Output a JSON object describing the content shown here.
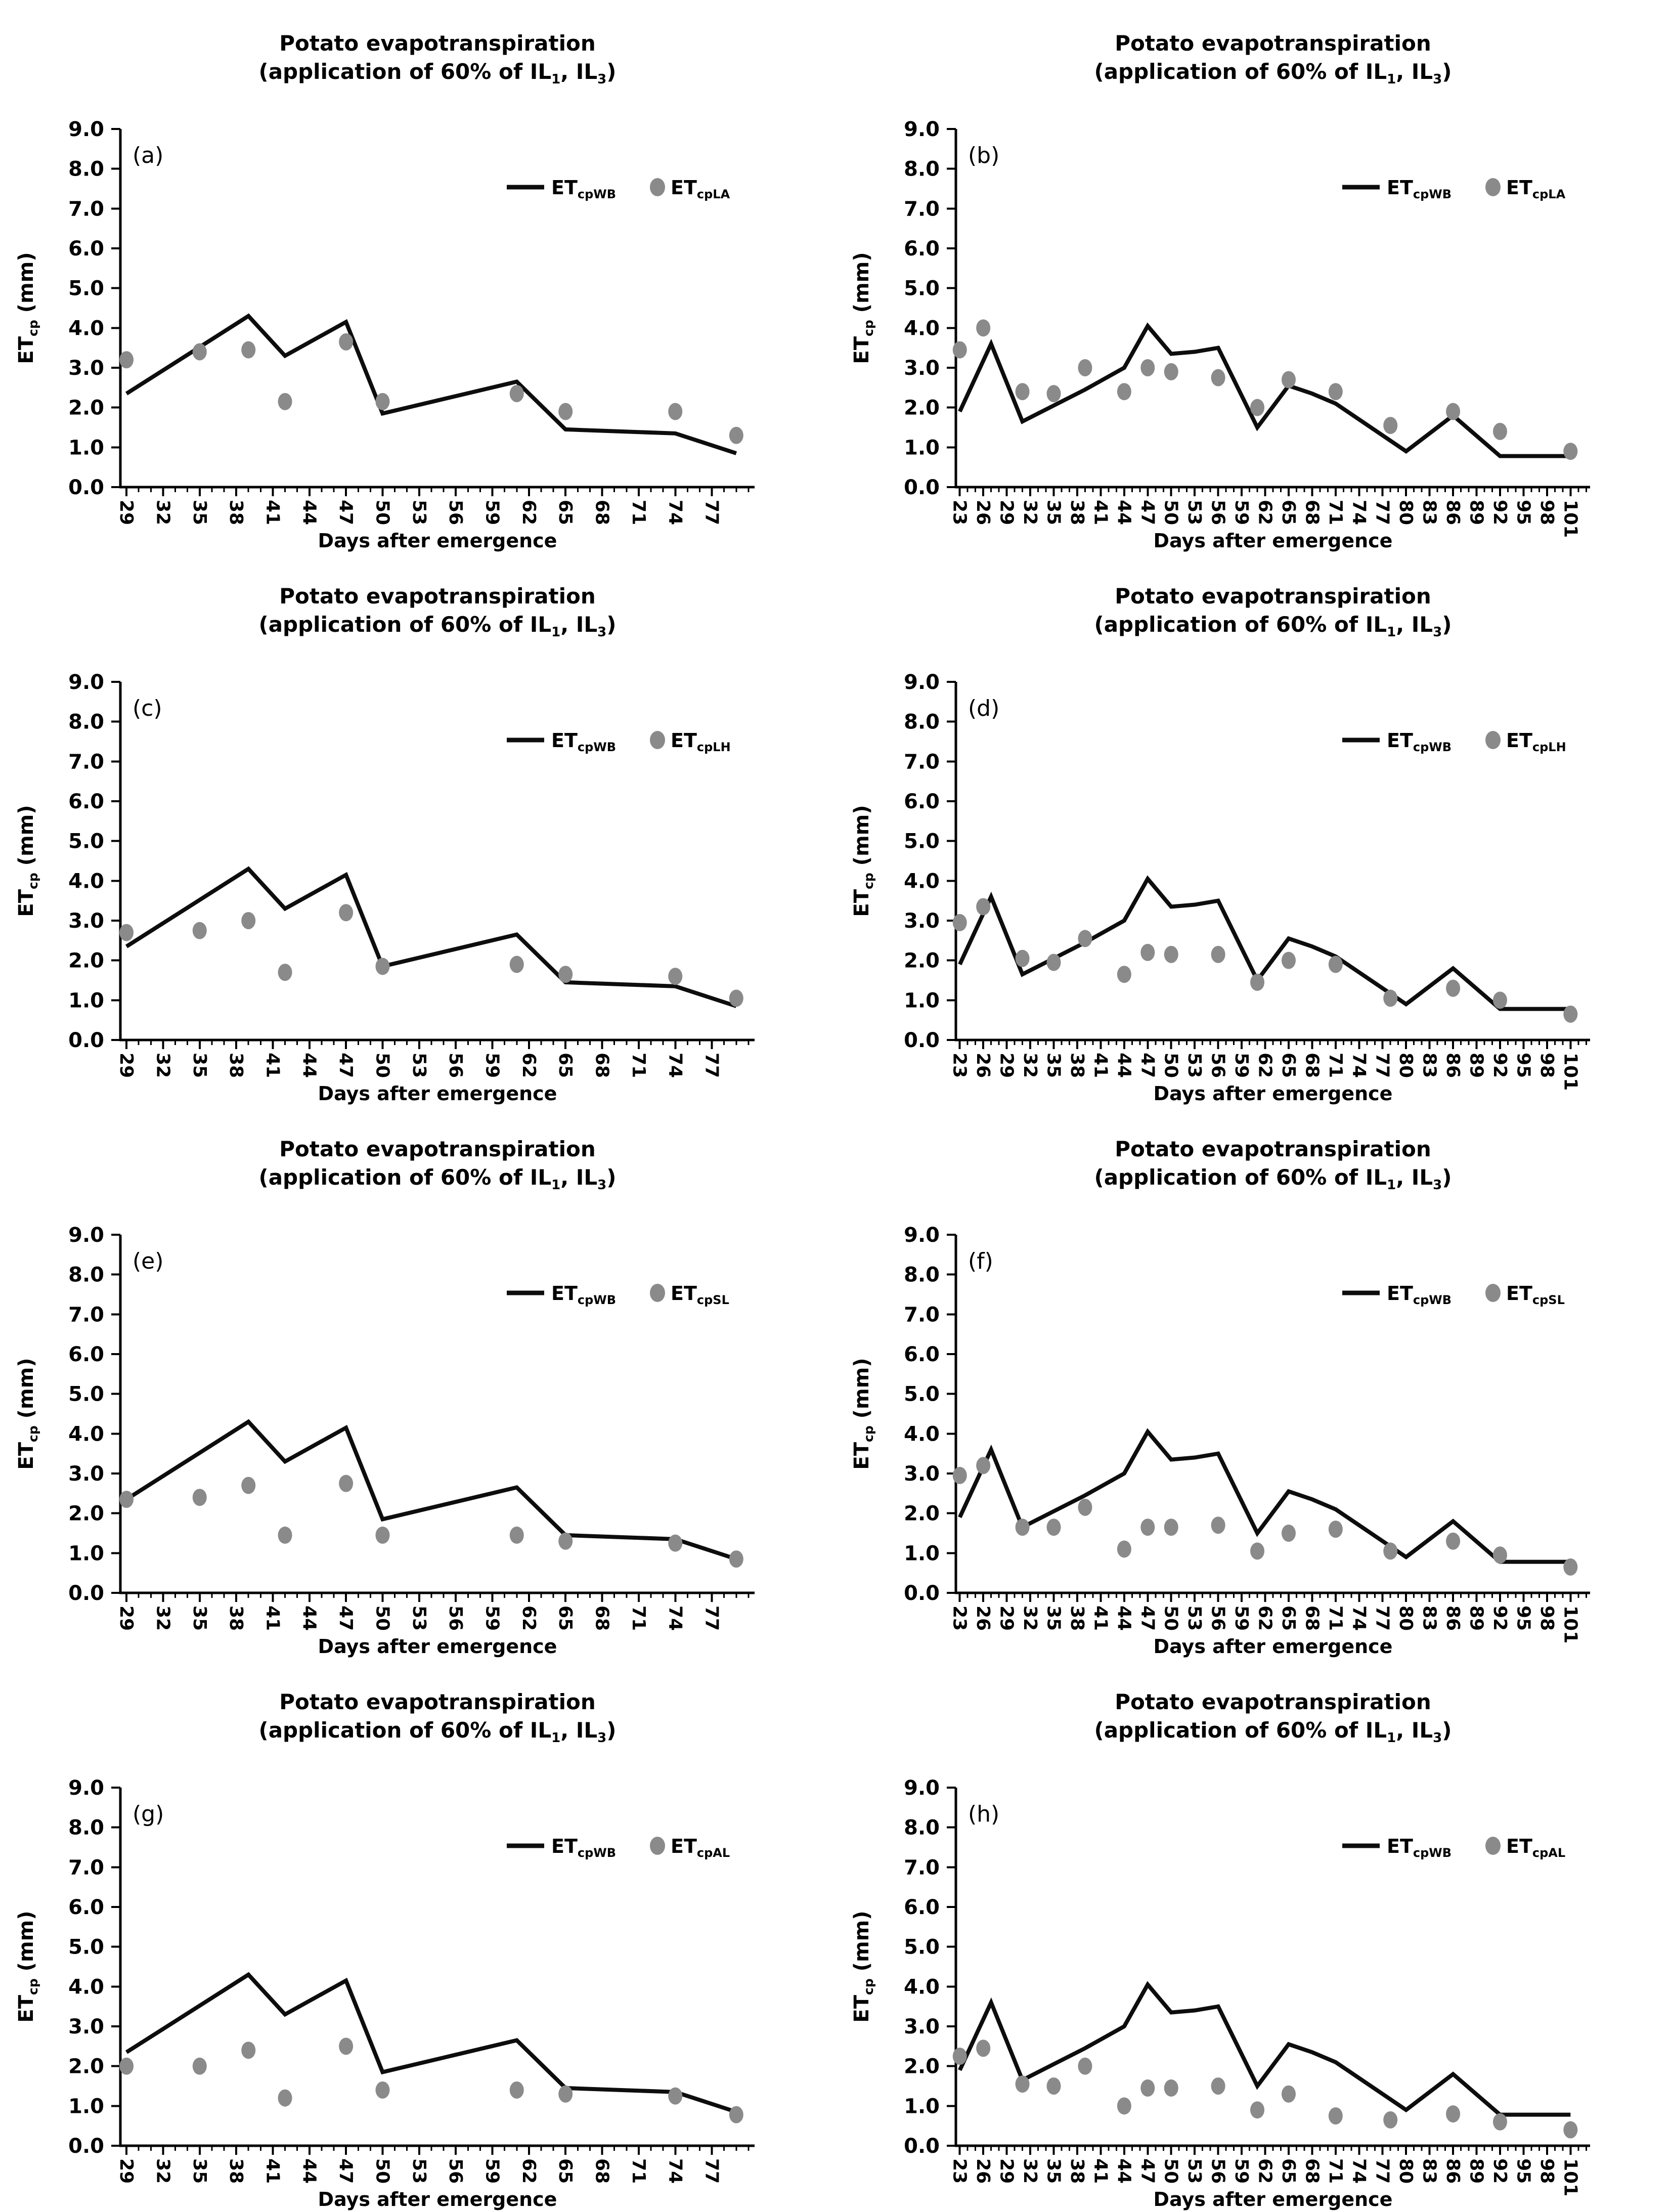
{
  "page": {
    "background": "#ffffff",
    "columns": 2,
    "rows": 4
  },
  "colors": {
    "line": "#0d0d0d",
    "marker": "#8a8a8a",
    "axis": "#000000",
    "text": "#000000"
  },
  "chart_data": [
    {
      "panel": "(a)",
      "type": "line+scatter",
      "title": "Potato evapotranspiration",
      "subtitle": "(application of 60% of IL_{1}, IL_{3})",
      "xlabel": "Days after emergence",
      "ylabel": "ET_{cp} (mm)",
      "xlim": [
        28.5,
        80.5
      ],
      "ylim": [
        0,
        9
      ],
      "xticks": [
        29,
        32,
        35,
        38,
        41,
        44,
        47,
        50,
        53,
        56,
        59,
        62,
        65,
        68,
        71,
        74,
        77
      ],
      "yticks": [
        0,
        1,
        2,
        3,
        4,
        5,
        6,
        7,
        8,
        9
      ],
      "minor_x_step": 1,
      "grid": false,
      "legend_position": "top-right-inside",
      "series": [
        {
          "name": "ET_{cpWB}",
          "type": "line",
          "x": [
            29,
            39,
            42,
            47,
            50,
            61,
            65,
            74,
            79
          ],
          "y": [
            2.35,
            4.3,
            3.3,
            4.15,
            1.85,
            2.65,
            1.45,
            1.35,
            0.85
          ]
        },
        {
          "name": "ET_{cpLA}",
          "type": "scatter",
          "x": [
            29,
            35,
            39,
            42,
            47,
            50,
            61,
            65,
            74,
            79
          ],
          "y": [
            3.2,
            3.4,
            3.45,
            2.15,
            3.65,
            2.15,
            2.35,
            1.9,
            1.9,
            1.3
          ]
        }
      ]
    },
    {
      "panel": "(b)",
      "type": "line+scatter",
      "title": "Potato evapotranspiration",
      "subtitle": "(application of 60% of IL_{1}, IL_{3})",
      "xlabel": "Days after emergence",
      "ylabel": "ET_{cp} (mm)",
      "xlim": [
        22.5,
        103.5
      ],
      "ylim": [
        0,
        9
      ],
      "xticks": [
        23,
        26,
        29,
        32,
        35,
        38,
        41,
        44,
        47,
        50,
        53,
        56,
        59,
        62,
        65,
        68,
        71,
        74,
        77,
        80,
        83,
        86,
        89,
        92,
        95,
        98,
        101
      ],
      "yticks": [
        0,
        1,
        2,
        3,
        4,
        5,
        6,
        7,
        8,
        9
      ],
      "minor_x_step": 1,
      "grid": false,
      "legend_position": "top-right-inside",
      "series": [
        {
          "name": "ET_{cpWB}",
          "type": "line",
          "x": [
            23,
            27,
            31,
            35,
            39,
            44,
            47,
            50,
            53,
            56,
            61,
            65,
            68,
            71,
            80,
            86,
            92,
            95,
            101
          ],
          "y": [
            1.9,
            3.6,
            1.65,
            2.05,
            2.45,
            3.0,
            4.05,
            3.35,
            3.4,
            3.5,
            1.5,
            2.55,
            2.35,
            2.1,
            0.9,
            1.8,
            0.78,
            0.78,
            0.78
          ]
        },
        {
          "name": "ET_{cpLA}",
          "type": "scatter",
          "x": [
            23,
            26,
            31,
            35,
            39,
            44,
            47,
            50,
            56,
            61,
            65,
            71,
            78,
            86,
            92,
            101
          ],
          "y": [
            3.45,
            4.0,
            2.4,
            2.35,
            3.0,
            2.4,
            3.0,
            2.9,
            2.75,
            2.0,
            2.7,
            2.4,
            1.55,
            1.9,
            1.4,
            0.9
          ]
        }
      ]
    },
    {
      "panel": "(c)",
      "type": "line+scatter",
      "title": "Potato evapotranspiration",
      "subtitle": "(application of 60% of IL_{1}, IL_{3})",
      "xlabel": "Days after emergence",
      "ylabel": "ET_{cp} (mm)",
      "xlim": [
        28.5,
        80.5
      ],
      "ylim": [
        0,
        9
      ],
      "xticks": [
        29,
        32,
        35,
        38,
        41,
        44,
        47,
        50,
        53,
        56,
        59,
        62,
        65,
        68,
        71,
        74,
        77
      ],
      "yticks": [
        0,
        1,
        2,
        3,
        4,
        5,
        6,
        7,
        8,
        9
      ],
      "minor_x_step": 1,
      "grid": false,
      "legend_position": "top-right-inside",
      "series": [
        {
          "name": "ET_{cpWB}",
          "type": "line",
          "x": [
            29,
            39,
            42,
            47,
            50,
            61,
            65,
            74,
            79
          ],
          "y": [
            2.35,
            4.3,
            3.3,
            4.15,
            1.85,
            2.65,
            1.45,
            1.35,
            0.85
          ]
        },
        {
          "name": "ET_{cpLH}",
          "type": "scatter",
          "x": [
            29,
            35,
            39,
            42,
            47,
            50,
            61,
            65,
            74,
            79
          ],
          "y": [
            2.7,
            2.75,
            3.0,
            1.7,
            3.2,
            1.85,
            1.9,
            1.65,
            1.6,
            1.05
          ]
        }
      ]
    },
    {
      "panel": "(d)",
      "type": "line+scatter",
      "title": "Potato evapotranspiration",
      "subtitle": "(application of 60% of IL_{1}, IL_{3})",
      "xlabel": "Days after emergence",
      "ylabel": "ET_{cp} (mm)",
      "xlim": [
        22.5,
        103.5
      ],
      "ylim": [
        0,
        9
      ],
      "xticks": [
        23,
        26,
        29,
        32,
        35,
        38,
        41,
        44,
        47,
        50,
        53,
        56,
        59,
        62,
        65,
        68,
        71,
        74,
        77,
        80,
        83,
        86,
        89,
        92,
        95,
        98,
        101
      ],
      "yticks": [
        0,
        1,
        2,
        3,
        4,
        5,
        6,
        7,
        8,
        9
      ],
      "minor_x_step": 1,
      "grid": false,
      "legend_position": "top-right-inside",
      "series": [
        {
          "name": "ET_{cpWB}",
          "type": "line",
          "x": [
            23,
            27,
            31,
            35,
            39,
            44,
            47,
            50,
            53,
            56,
            61,
            65,
            68,
            71,
            80,
            86,
            92,
            95,
            101
          ],
          "y": [
            1.9,
            3.6,
            1.65,
            2.05,
            2.45,
            3.0,
            4.05,
            3.35,
            3.4,
            3.5,
            1.5,
            2.55,
            2.35,
            2.1,
            0.9,
            1.8,
            0.78,
            0.78,
            0.78
          ]
        },
        {
          "name": "ET_{cpLH}",
          "type": "scatter",
          "x": [
            23,
            26,
            31,
            35,
            39,
            44,
            47,
            50,
            56,
            61,
            65,
            71,
            78,
            86,
            92,
            101
          ],
          "y": [
            2.95,
            3.35,
            2.05,
            1.95,
            2.55,
            1.65,
            2.2,
            2.15,
            2.15,
            1.45,
            2.0,
            1.9,
            1.05,
            1.3,
            1.0,
            0.65
          ]
        }
      ]
    },
    {
      "panel": "(e)",
      "type": "line+scatter",
      "title": "Potato evapotranspiration",
      "subtitle": "(application of 60% of IL_{1}, IL_{3})",
      "xlabel": "Days after emergence",
      "ylabel": "ET_{cp} (mm)",
      "xlim": [
        28.5,
        80.5
      ],
      "ylim": [
        0,
        9
      ],
      "xticks": [
        29,
        32,
        35,
        38,
        41,
        44,
        47,
        50,
        53,
        56,
        59,
        62,
        65,
        68,
        71,
        74,
        77
      ],
      "yticks": [
        0,
        1,
        2,
        3,
        4,
        5,
        6,
        7,
        8,
        9
      ],
      "minor_x_step": 1,
      "grid": false,
      "legend_position": "top-right-inside",
      "series": [
        {
          "name": "ET_{cpWB}",
          "type": "line",
          "x": [
            29,
            39,
            42,
            47,
            50,
            61,
            65,
            74,
            79
          ],
          "y": [
            2.35,
            4.3,
            3.3,
            4.15,
            1.85,
            2.65,
            1.45,
            1.35,
            0.85
          ]
        },
        {
          "name": "ET_{cpSL}",
          "type": "scatter",
          "x": [
            29,
            35,
            39,
            42,
            47,
            50,
            61,
            65,
            74,
            79
          ],
          "y": [
            2.35,
            2.4,
            2.7,
            1.45,
            2.75,
            1.45,
            1.45,
            1.3,
            1.25,
            0.85
          ]
        }
      ]
    },
    {
      "panel": "(f)",
      "type": "line+scatter",
      "title": "Potato evapotranspiration",
      "subtitle": "(application of 60% of IL_{1}, IL_{3})",
      "xlabel": "Days after emergence",
      "ylabel": "ET_{cp} (mm)",
      "xlim": [
        22.5,
        103.5
      ],
      "ylim": [
        0,
        9
      ],
      "xticks": [
        23,
        26,
        29,
        32,
        35,
        38,
        41,
        44,
        47,
        50,
        53,
        56,
        59,
        62,
        65,
        68,
        71,
        74,
        77,
        80,
        83,
        86,
        89,
        92,
        95,
        98,
        101
      ],
      "yticks": [
        0,
        1,
        2,
        3,
        4,
        5,
        6,
        7,
        8,
        9
      ],
      "minor_x_step": 1,
      "grid": false,
      "legend_position": "top-right-inside",
      "series": [
        {
          "name": "ET_{cpWB}",
          "type": "line",
          "x": [
            23,
            27,
            31,
            35,
            39,
            44,
            47,
            50,
            53,
            56,
            61,
            65,
            68,
            71,
            80,
            86,
            92,
            95,
            101
          ],
          "y": [
            1.9,
            3.6,
            1.65,
            2.05,
            2.45,
            3.0,
            4.05,
            3.35,
            3.4,
            3.5,
            1.5,
            2.55,
            2.35,
            2.1,
            0.9,
            1.8,
            0.78,
            0.78,
            0.78
          ]
        },
        {
          "name": "ET_{cpSL}",
          "type": "scatter",
          "x": [
            23,
            26,
            31,
            35,
            39,
            44,
            47,
            50,
            56,
            61,
            65,
            71,
            78,
            86,
            92,
            101
          ],
          "y": [
            2.95,
            3.2,
            1.65,
            1.65,
            2.15,
            1.1,
            1.65,
            1.65,
            1.7,
            1.05,
            1.5,
            1.6,
            1.05,
            1.3,
            0.95,
            0.65
          ]
        }
      ]
    },
    {
      "panel": "(g)",
      "type": "line+scatter",
      "title": "Potato evapotranspiration",
      "subtitle": "(application of 60% of IL_{1}, IL_{3})",
      "xlabel": "Days after emergence",
      "ylabel": "ET_{cp} (mm)",
      "xlim": [
        28.5,
        80.5
      ],
      "ylim": [
        0,
        9
      ],
      "xticks": [
        29,
        32,
        35,
        38,
        41,
        44,
        47,
        50,
        53,
        56,
        59,
        62,
        65,
        68,
        71,
        74,
        77
      ],
      "yticks": [
        0,
        1,
        2,
        3,
        4,
        5,
        6,
        7,
        8,
        9
      ],
      "minor_x_step": 1,
      "grid": false,
      "legend_position": "top-right-inside",
      "series": [
        {
          "name": "ET_{cpWB}",
          "type": "line",
          "x": [
            29,
            39,
            42,
            47,
            50,
            61,
            65,
            74,
            79
          ],
          "y": [
            2.35,
            4.3,
            3.3,
            4.15,
            1.85,
            2.65,
            1.45,
            1.35,
            0.85
          ]
        },
        {
          "name": "ET_{cpAL}",
          "type": "scatter",
          "x": [
            29,
            35,
            39,
            42,
            47,
            50,
            61,
            65,
            74,
            79
          ],
          "y": [
            2.0,
            2.0,
            2.4,
            1.2,
            2.5,
            1.4,
            1.4,
            1.3,
            1.25,
            0.78
          ]
        }
      ]
    },
    {
      "panel": "(h)",
      "type": "line+scatter",
      "title": "Potato evapotranspiration",
      "subtitle": "(application of 60% of IL_{1}, IL_{3})",
      "xlabel": "Days after emergence",
      "ylabel": "ET_{cp} (mm)",
      "xlim": [
        22.5,
        103.5
      ],
      "ylim": [
        0,
        9
      ],
      "xticks": [
        23,
        26,
        29,
        32,
        35,
        38,
        41,
        44,
        47,
        50,
        53,
        56,
        59,
        62,
        65,
        68,
        71,
        74,
        77,
        80,
        83,
        86,
        89,
        92,
        95,
        98,
        101
      ],
      "yticks": [
        0,
        1,
        2,
        3,
        4,
        5,
        6,
        7,
        8,
        9
      ],
      "minor_x_step": 1,
      "grid": false,
      "legend_position": "top-right-inside",
      "series": [
        {
          "name": "ET_{cpWB}",
          "type": "line",
          "x": [
            23,
            27,
            31,
            35,
            39,
            44,
            47,
            50,
            53,
            56,
            61,
            65,
            68,
            71,
            80,
            86,
            92,
            95,
            101
          ],
          "y": [
            1.9,
            3.6,
            1.65,
            2.05,
            2.45,
            3.0,
            4.05,
            3.35,
            3.4,
            3.5,
            1.5,
            2.55,
            2.35,
            2.1,
            0.9,
            1.8,
            0.78,
            0.78,
            0.78
          ]
        },
        {
          "name": "ET_{cpAL}",
          "type": "scatter",
          "x": [
            23,
            26,
            31,
            35,
            39,
            44,
            47,
            50,
            56,
            61,
            65,
            71,
            78,
            86,
            92,
            101
          ],
          "y": [
            2.25,
            2.45,
            1.55,
            1.5,
            2.0,
            1.0,
            1.45,
            1.45,
            1.5,
            0.9,
            1.3,
            0.75,
            0.65,
            0.8,
            0.6,
            0.4
          ]
        }
      ]
    }
  ]
}
